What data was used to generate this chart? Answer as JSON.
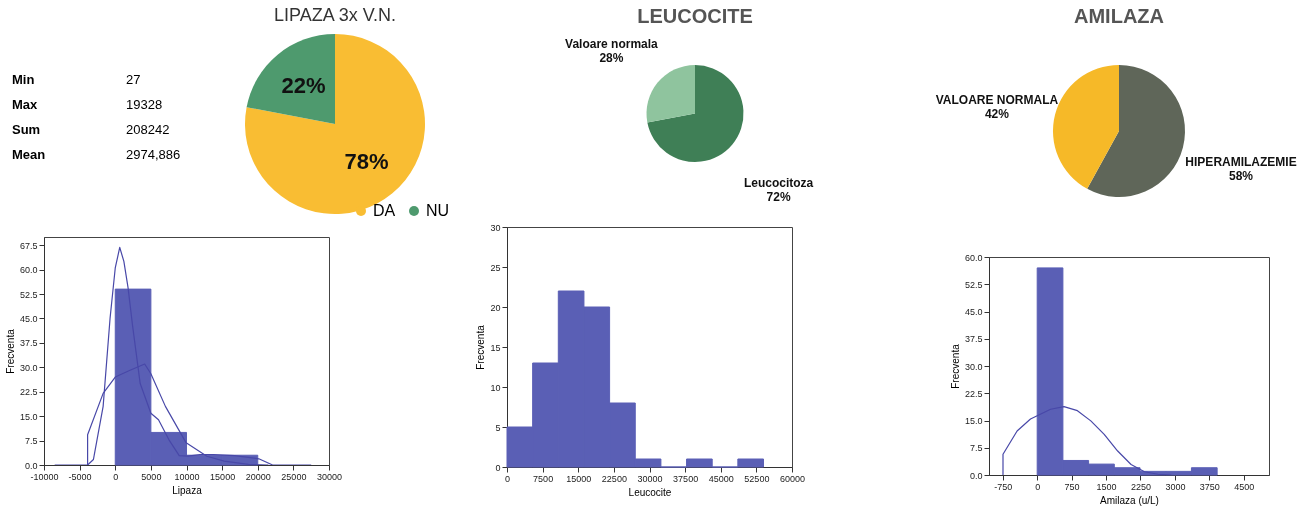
{
  "chart_data": [
    {
      "type": "other",
      "categories": [
        "Min",
        "Max",
        "Sum",
        "Mean"
      ],
      "value_labels": [
        "27",
        "19328",
        "208242",
        "2974,886"
      ]
    },
    {
      "type": "pie",
      "title": "LIPAZA 3x V.N.",
      "categories": [
        "DA",
        "NU"
      ],
      "values": [
        78,
        22
      ],
      "colors": [
        "#f9bd33",
        "#4e9a6e"
      ],
      "value_labels": [
        "78%",
        "22%"
      ],
      "legend": "bottom right"
    },
    {
      "type": "pie",
      "title": "LEUCOCITE",
      "categories": [
        "Leucocitoza",
        "Valoare normala"
      ],
      "values": [
        72,
        28
      ],
      "colors": [
        "#3f7f56",
        "#8fc49e"
      ],
      "value_labels": [
        "72%",
        "28%"
      ]
    },
    {
      "type": "pie",
      "title": "AMILAZA",
      "categories": [
        "HIPERAMILAZEMIE",
        "VALOARE NORMALA"
      ],
      "values": [
        58,
        42
      ],
      "colors": [
        "#5f6659",
        "#f6b928"
      ],
      "value_labels": [
        "58%",
        "42%"
      ]
    },
    {
      "type": "histogram",
      "xlabel": "Lipaza",
      "ylabel": "Frecventa",
      "bins": [
        0,
        5000,
        10000,
        15000,
        20000
      ],
      "values": [
        54,
        10,
        3,
        3
      ],
      "color": "#5a5fb5",
      "xlim": [
        -10000,
        30000
      ],
      "ylim": [
        0,
        70
      ],
      "xticks": [
        -10000,
        -5000,
        0,
        5000,
        10000,
        15000,
        20000,
        25000,
        30000
      ],
      "yticks": [
        {
          "value": 0,
          "label": "0.0"
        },
        7.5,
        {
          "value": 15,
          "label": "15.0"
        },
        22.5,
        {
          "value": 30,
          "label": "30.0"
        },
        37.5,
        {
          "value": 45,
          "label": "45.0"
        },
        52.5,
        {
          "value": 60,
          "label": "60.0"
        },
        67.5
      ],
      "series": [
        {
          "type": "line",
          "color": "#4848a8",
          "x": [
            -8500,
            -3880,
            -3060,
            -1700,
            -730,
            0,
            630,
            1210,
            1800,
            2430,
            3500,
            5000,
            6070,
            7520,
            8980,
            10200,
            11900,
            13800,
            16750,
            20150,
            22090,
            27500
          ],
          "values": [
            0,
            0,
            1.7,
            18,
            45,
            60.5,
            66.8,
            62.5,
            54.4,
            42.8,
            25,
            15.9,
            13.9,
            7.8,
            2.9,
            2.7,
            3.2,
            3.2,
            2.9,
            1.9,
            0,
            0
          ]
        },
        {
          "type": "line",
          "color": "#4848a8",
          "x": [
            -3880,
            -3880,
            -1700,
            0,
            2000,
            4130,
            5000,
            7040,
            9950,
            12860,
            15290,
            18690,
            21500
          ],
          "values": [
            0,
            9.3,
            22,
            27,
            29,
            31,
            28,
            18,
            6.8,
            2.7,
            1.2,
            0.2,
            0
          ]
        }
      ]
    },
    {
      "type": "histogram",
      "xlabel": "Leucocite",
      "ylabel": "Frecventa",
      "bins": [
        0,
        5400,
        10800,
        16200,
        21600,
        27000,
        32400,
        37800,
        43200,
        48600,
        54000
      ],
      "values": [
        5,
        13,
        22,
        20,
        8,
        1,
        0,
        1,
        0,
        1
      ],
      "color": "#5a5fb5",
      "xlim": [
        0,
        60000
      ],
      "ylim": [
        0,
        30
      ],
      "xticks": [
        0,
        7500,
        15000,
        22500,
        30000,
        37500,
        45000,
        52500,
        60000
      ],
      "yticks": [
        0,
        5,
        10,
        15,
        20,
        25,
        30
      ]
    },
    {
      "type": "histogram",
      "xlabel": "Amilaza (u/L)",
      "ylabel": "Frecventa",
      "bins": [
        0,
        560,
        1120,
        1680,
        2240,
        2800,
        3360,
        3920
      ],
      "values": [
        57,
        4,
        3,
        2,
        1,
        1,
        2
      ],
      "color": "#5a5fb5",
      "xlim": [
        -1050,
        5050
      ],
      "ylim": [
        0,
        60
      ],
      "xticks": [
        -750,
        0,
        750,
        1500,
        2250,
        3000,
        3750,
        4500
      ],
      "yticks": [
        {
          "value": 0,
          "label": "0.0"
        },
        7.5,
        {
          "value": 15,
          "label": "15.0"
        },
        22.5,
        {
          "value": 30,
          "label": "30.0"
        },
        37.5,
        {
          "value": 45,
          "label": "45.0"
        },
        52.5,
        {
          "value": 60,
          "label": "60.0"
        }
      ],
      "series": [
        {
          "type": "line",
          "color": "#4848a8",
          "x": [
            -745,
            -745,
            -438,
            -146,
            0,
            292,
            584,
            876,
            1168,
            1460,
            1753,
            2045,
            2337,
            2629,
            2921
          ],
          "values": [
            0,
            5.7,
            12.1,
            15.4,
            16.3,
            18.1,
            18.8,
            17.7,
            14.9,
            11.2,
            6.6,
            2.9,
            0.9,
            0.2,
            0
          ]
        }
      ]
    }
  ]
}
